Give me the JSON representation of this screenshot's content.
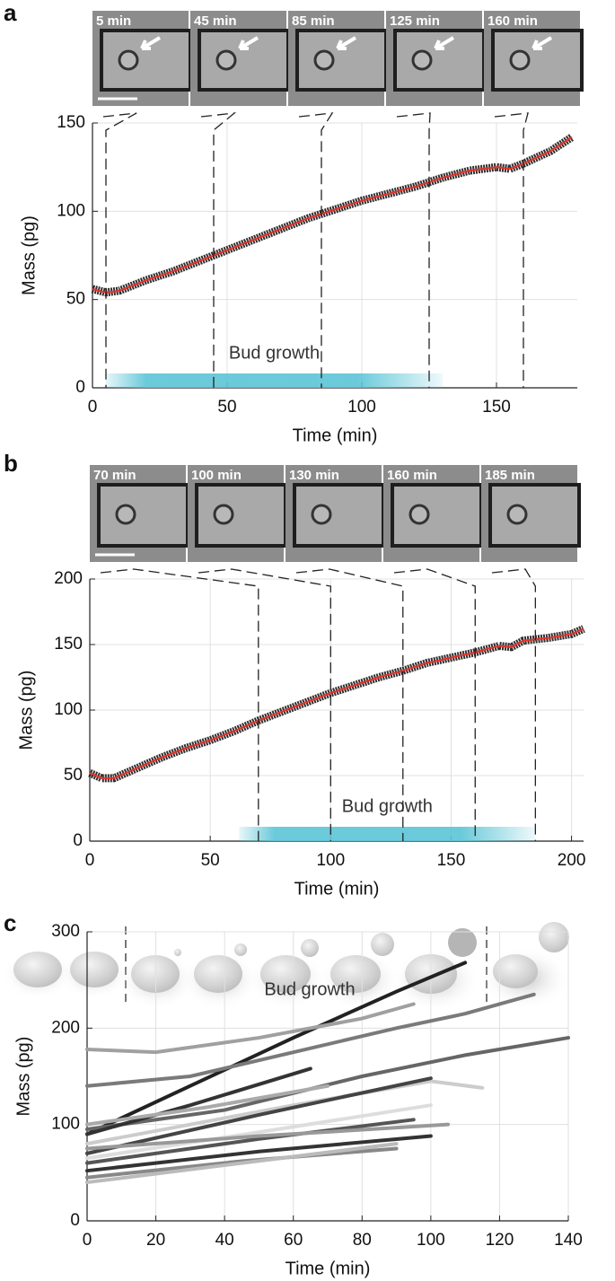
{
  "chart_data": [
    {
      "type": "line",
      "panel": "a",
      "xlabel": "Time (min)",
      "ylabel": "Mass (pg)",
      "xlim": [
        0,
        180
      ],
      "ylim": [
        0,
        150
      ],
      "xticks": [
        0,
        50,
        100,
        150
      ],
      "yticks": [
        0,
        50,
        100,
        150
      ],
      "grid": true,
      "marker_color": "#1a1a1a",
      "series": [
        {
          "color": "#e8322a",
          "x": [
            0,
            5,
            10,
            15,
            20,
            30,
            40,
            50,
            60,
            70,
            80,
            90,
            100,
            110,
            120,
            130,
            140,
            150,
            155,
            160,
            170,
            178
          ],
          "values": [
            56,
            54,
            55,
            58,
            61,
            66,
            72,
            78,
            84,
            90,
            96,
            101,
            106,
            110,
            114,
            119,
            123,
            125,
            124,
            127,
            134,
            142
          ]
        }
      ],
      "annotation": "Bud growth",
      "annotation_span": [
        5,
        130
      ],
      "annotation_color": "#5bc4d6",
      "frames": [
        {
          "label": "5 min",
          "time": 5
        },
        {
          "label": "45 min",
          "time": 45
        },
        {
          "label": "85 min",
          "time": 85
        },
        {
          "label": "125 min",
          "time": 125
        },
        {
          "label": "160 min",
          "time": 160
        }
      ]
    },
    {
      "type": "line",
      "panel": "b",
      "xlabel": "Time (min)",
      "ylabel": "Mass (pg)",
      "xlim": [
        0,
        205
      ],
      "ylim": [
        0,
        200
      ],
      "xticks": [
        0,
        50,
        100,
        150,
        200
      ],
      "yticks": [
        0,
        50,
        100,
        150,
        200
      ],
      "grid": true,
      "marker_color": "#1a1a1a",
      "series": [
        {
          "color": "#e8322a",
          "x": [
            0,
            5,
            10,
            20,
            30,
            40,
            50,
            60,
            70,
            80,
            90,
            100,
            110,
            120,
            130,
            140,
            150,
            160,
            170,
            175,
            180,
            190,
            200,
            205
          ],
          "values": [
            52,
            48,
            48,
            56,
            64,
            71,
            77,
            84,
            92,
            99,
            106,
            113,
            119,
            125,
            130,
            136,
            140,
            144,
            149,
            148,
            153,
            155,
            158,
            162
          ]
        }
      ],
      "annotation": "Bud growth",
      "annotation_span": [
        62,
        185
      ],
      "annotation_color": "#5bc4d6",
      "frames": [
        {
          "label": "70 min",
          "time": 70
        },
        {
          "label": "100 min",
          "time": 100
        },
        {
          "label": "130 min",
          "time": 130
        },
        {
          "label": "160 min",
          "time": 160
        },
        {
          "label": "185 min",
          "time": 185
        }
      ]
    },
    {
      "type": "multiline",
      "panel": "c",
      "xlabel": "Time (min)",
      "ylabel": "Mass (pg)",
      "xlim": [
        0,
        140
      ],
      "ylim": [
        0,
        300
      ],
      "xticks": [
        0,
        20,
        40,
        60,
        80,
        100,
        120,
        140
      ],
      "yticks": [
        0,
        100,
        200,
        300
      ],
      "grid": true,
      "annotation": "Bud growth",
      "series": [
        {
          "color": "#222222",
          "x": [
            0,
            30,
            60,
            90,
            110
          ],
          "values": [
            90,
            140,
            190,
            238,
            268
          ]
        },
        {
          "color": "#a0a0a0",
          "x": [
            0,
            20,
            50,
            80,
            95
          ],
          "values": [
            178,
            175,
            190,
            210,
            225
          ]
        },
        {
          "color": "#7a7a7a",
          "x": [
            0,
            30,
            60,
            90,
            110,
            130
          ],
          "values": [
            140,
            150,
            175,
            200,
            215,
            235
          ]
        },
        {
          "color": "#666666",
          "x": [
            0,
            40,
            80,
            110,
            140
          ],
          "values": [
            95,
            115,
            150,
            172,
            190
          ]
        },
        {
          "color": "#333333",
          "x": [
            0,
            30,
            65
          ],
          "values": [
            90,
            120,
            158
          ]
        },
        {
          "color": "#aaaaaa",
          "x": [
            0,
            35,
            70
          ],
          "values": [
            100,
            118,
            140
          ]
        },
        {
          "color": "#cccccc",
          "x": [
            0,
            60,
            100,
            115
          ],
          "values": [
            80,
            120,
            145,
            138
          ]
        },
        {
          "color": "#444444",
          "x": [
            0,
            50,
            100
          ],
          "values": [
            70,
            110,
            148
          ]
        },
        {
          "color": "#dddddd",
          "x": [
            0,
            50,
            100
          ],
          "values": [
            65,
            92,
            120
          ]
        },
        {
          "color": "#555555",
          "x": [
            0,
            50,
            95
          ],
          "values": [
            60,
            85,
            105
          ]
        },
        {
          "color": "#333333",
          "x": [
            0,
            50,
            100
          ],
          "values": [
            52,
            72,
            88
          ]
        },
        {
          "color": "#888888",
          "x": [
            0,
            45,
            90
          ],
          "values": [
            45,
            62,
            75
          ]
        },
        {
          "color": "#bbbbbb",
          "x": [
            0,
            45,
            90
          ],
          "values": [
            40,
            60,
            80
          ]
        },
        {
          "color": "#999999",
          "x": [
            0,
            50,
            105
          ],
          "values": [
            75,
            88,
            100
          ]
        }
      ]
    }
  ]
}
